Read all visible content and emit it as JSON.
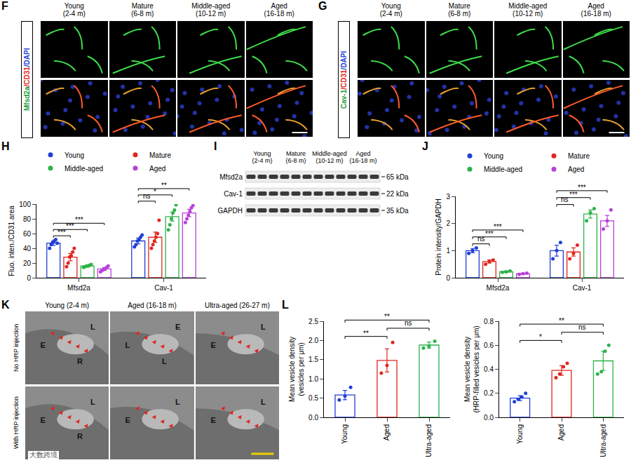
{
  "image_panels": [
    {
      "letter": "F",
      "label_parts": [
        {
          "text": "Mfsd2a",
          "color": "#1f9e3c"
        },
        {
          "text": "/CD31",
          "color": "#e0261f"
        },
        {
          "text": "/DAPI",
          "color": "#1f3fd6"
        }
      ],
      "columns": [
        "Young (2-4 m)",
        "Mature (6-8 m)",
        "Middle-aged (10-12 m)",
        "Aged (16-18 m)"
      ]
    },
    {
      "letter": "G",
      "label_parts": [
        {
          "text": "Cav-1",
          "color": "#1f9e3c"
        },
        {
          "text": "/CD31",
          "color": "#e0261f"
        },
        {
          "text": "/DAPI",
          "color": "#1f3fd6"
        }
      ],
      "columns": [
        "Young (2-4 m)",
        "Mature (6-8 m)",
        "Middle-aged (10-12 m)",
        "Aged (16-18 m)"
      ]
    }
  ],
  "western_blot": {
    "letter": "I",
    "groups": [
      "Young (2-4 m)",
      "Mature (6-8 m)",
      "Middle-aged (10-12 m)",
      "Aged (16-18 m)"
    ],
    "lanes_per_group": 3,
    "rows": [
      {
        "protein": "Mfsd2a",
        "size": "65 kDa"
      },
      {
        "protein": "Cav-1",
        "size": "22 kDa"
      },
      {
        "protein": "GAPDH",
        "size": "35 kDa"
      }
    ]
  },
  "em_panel": {
    "letter": "K",
    "columns": [
      "Young (2-4 m)",
      "Aged (16-18 m)",
      "Ultra-aged (26-27 m)"
    ],
    "rows": [
      "No HRP injection",
      "With HRP injection"
    ],
    "tile_labels": [
      [
        "E",
        "L",
        "R"
      ],
      [
        "L",
        "E",
        "L"
      ],
      [
        "E",
        "L"
      ],
      [
        "E",
        "L",
        "R"
      ],
      [
        "E",
        "L"
      ],
      [
        "E",
        "L"
      ]
    ]
  },
  "watermark": "大数跨境",
  "chart_data": [
    {
      "letter": "H",
      "type": "bar",
      "categories": [
        "Mfsd2a",
        "Cav-1"
      ],
      "ylabel": "Fluo. inten./CD31 area",
      "ylim": [
        0,
        100
      ],
      "yticks": [
        0,
        20,
        40,
        60,
        80,
        100
      ],
      "grid": false,
      "legend": "top",
      "series": [
        {
          "name": "Young",
          "color": "#1f3fd6",
          "values": [
            47,
            50
          ],
          "errors": [
            3,
            4
          ],
          "points": [
            [
              40,
              45,
              48,
              50,
              52,
              47
            ],
            [
              42,
              45,
              50,
              52,
              55,
              58
            ]
          ]
        },
        {
          "name": "Mature",
          "color": "#e0261f",
          "values": [
            28,
            55
          ],
          "errors": [
            5,
            7
          ],
          "points": [
            [
              15,
              20,
              28,
              30,
              35,
              40
            ],
            [
              40,
              45,
              50,
              55,
              60,
              78
            ]
          ]
        },
        {
          "name": "Middle-aged",
          "color": "#2db34a",
          "values": [
            16,
            83
          ],
          "errors": [
            1,
            6
          ],
          "points": [
            [
              14,
              15,
              16,
              16,
              17,
              18
            ],
            [
              65,
              72,
              80,
              88,
              92,
              99
            ]
          ]
        },
        {
          "name": "Aged",
          "color": "#b940d9",
          "values": [
            12,
            88
          ],
          "errors": [
            2,
            5
          ],
          "points": [
            [
              8,
              10,
              11,
              12,
              14,
              16
            ],
            [
              75,
              80,
              85,
              90,
              95,
              98
            ]
          ]
        }
      ],
      "comparisons": [
        {
          "category": "Mfsd2a",
          "from": "Young",
          "to": "Mature",
          "label": "***"
        },
        {
          "category": "Mfsd2a",
          "from": "Young",
          "to": "Middle-aged",
          "label": "***"
        },
        {
          "category": "Mfsd2a",
          "from": "Young",
          "to": "Aged",
          "label": "***"
        },
        {
          "category": "Cav-1",
          "from": "Young",
          "to": "Mature",
          "label": "ns"
        },
        {
          "category": "Cav-1",
          "from": "Young",
          "to": "Middle-aged",
          "label": "*"
        },
        {
          "category": "Cav-1",
          "from": "Young",
          "to": "Aged",
          "label": "**"
        }
      ]
    },
    {
      "letter": "J",
      "type": "bar",
      "categories": [
        "Mfsd2a",
        "Cav-1"
      ],
      "ylabel": "Protein intensity/GAPDH",
      "ylim": [
        0,
        3
      ],
      "yticks": [
        0,
        1,
        2,
        3
      ],
      "grid": false,
      "legend": "top",
      "series": [
        {
          "name": "Young",
          "color": "#1f3fd6",
          "values": [
            1.0,
            1.0
          ],
          "errors": [
            0.08,
            0.2
          ],
          "points": [
            [
              0.9,
              1.0,
              1.1
            ],
            [
              0.7,
              1.0,
              1.3
            ]
          ]
        },
        {
          "name": "Mature",
          "color": "#e0261f",
          "values": [
            0.6,
            0.95
          ],
          "errors": [
            0.06,
            0.15
          ],
          "points": [
            [
              0.5,
              0.6,
              0.65
            ],
            [
              0.7,
              0.9,
              1.2
            ]
          ]
        },
        {
          "name": "Middle-aged",
          "color": "#2db34a",
          "values": [
            0.22,
            2.35
          ],
          "errors": [
            0.03,
            0.15
          ],
          "points": [
            [
              0.2,
              0.22,
              0.25
            ],
            [
              2.1,
              2.4,
              2.55
            ]
          ]
        },
        {
          "name": "Aged",
          "color": "#b940d9",
          "values": [
            0.15,
            2.1
          ],
          "errors": [
            0.02,
            0.2
          ],
          "points": [
            [
              0.12,
              0.15,
              0.17
            ],
            [
              1.8,
              2.1,
              2.5
            ]
          ]
        }
      ],
      "comparisons": [
        {
          "category": "Mfsd2a",
          "from": "Young",
          "to": "Mature",
          "label": "ns"
        },
        {
          "category": "Mfsd2a",
          "from": "Young",
          "to": "Middle-aged",
          "label": "***"
        },
        {
          "category": "Mfsd2a",
          "from": "Young",
          "to": "Aged",
          "label": "***"
        },
        {
          "category": "Cav-1",
          "from": "Young",
          "to": "Mature",
          "label": "ns"
        },
        {
          "category": "Cav-1",
          "from": "Young",
          "to": "Middle-aged",
          "label": "***"
        },
        {
          "category": "Cav-1",
          "from": "Young",
          "to": "Aged",
          "label": "***"
        }
      ]
    },
    {
      "letter": "L",
      "type": "bar",
      "categories": [
        "Young",
        "Aged",
        "Ultra-aged"
      ],
      "colors": [
        "#1f3fd6",
        "#e0261f",
        "#2db34a"
      ],
      "values": [
        0.58,
        1.48,
        1.88
      ],
      "errors": [
        0.12,
        0.3,
        0.08
      ],
      "points": [
        [
          0.45,
          0.55,
          0.78
        ],
        [
          1.15,
          1.35,
          1.95
        ],
        [
          1.8,
          1.85,
          1.98
        ]
      ],
      "ylabel": "Mean vesicle density (vesicles per μm)",
      "ylim": [
        0,
        2.5
      ],
      "yticks": [
        {
          "value": 0,
          "label": "0.0"
        },
        {
          "value": 0.5,
          "label": "0.5"
        },
        {
          "value": 1,
          "label": "1.0"
        },
        {
          "value": 1.5,
          "label": "1.5"
        },
        {
          "value": 2,
          "label": "2.0"
        },
        {
          "value": 2.5,
          "label": "2.5"
        }
      ],
      "grid": false,
      "comparisons": [
        {
          "from": "Young",
          "to": "Aged",
          "label": "**"
        },
        {
          "from": "Aged",
          "to": "Ultra-aged",
          "label": "ns"
        },
        {
          "from": "Young",
          "to": "Ultra-aged",
          "label": "**"
        }
      ]
    },
    {
      "type": "bar",
      "categories": [
        "Young",
        "Aged",
        "Ultra-aged"
      ],
      "colors": [
        "#1f3fd6",
        "#e0261f",
        "#2db34a"
      ],
      "values": [
        0.16,
        0.39,
        0.47
      ],
      "errors": [
        0.02,
        0.04,
        0.08
      ],
      "points": [
        [
          0.13,
          0.15,
          0.17,
          0.2
        ],
        [
          0.33,
          0.36,
          0.42,
          0.45
        ],
        [
          0.36,
          0.38,
          0.55,
          0.6
        ]
      ],
      "ylabel": "Mean vesicle density (HRP-filled vesicles per μm)",
      "ylim": [
        0,
        0.8
      ],
      "yticks": [
        {
          "value": 0,
          "label": "0.0"
        },
        {
          "value": 0.2,
          "label": "0.2"
        },
        {
          "value": 0.4,
          "label": "0.4"
        },
        {
          "value": 0.6,
          "label": "0.6"
        },
        {
          "value": 0.8,
          "label": "0.8"
        }
      ],
      "grid": false,
      "comparisons": [
        {
          "from": "Young",
          "to": "Aged",
          "label": "*"
        },
        {
          "from": "Aged",
          "to": "Ultra-aged",
          "label": "ns"
        },
        {
          "from": "Young",
          "to": "Ultra-aged",
          "label": "**"
        }
      ]
    }
  ]
}
